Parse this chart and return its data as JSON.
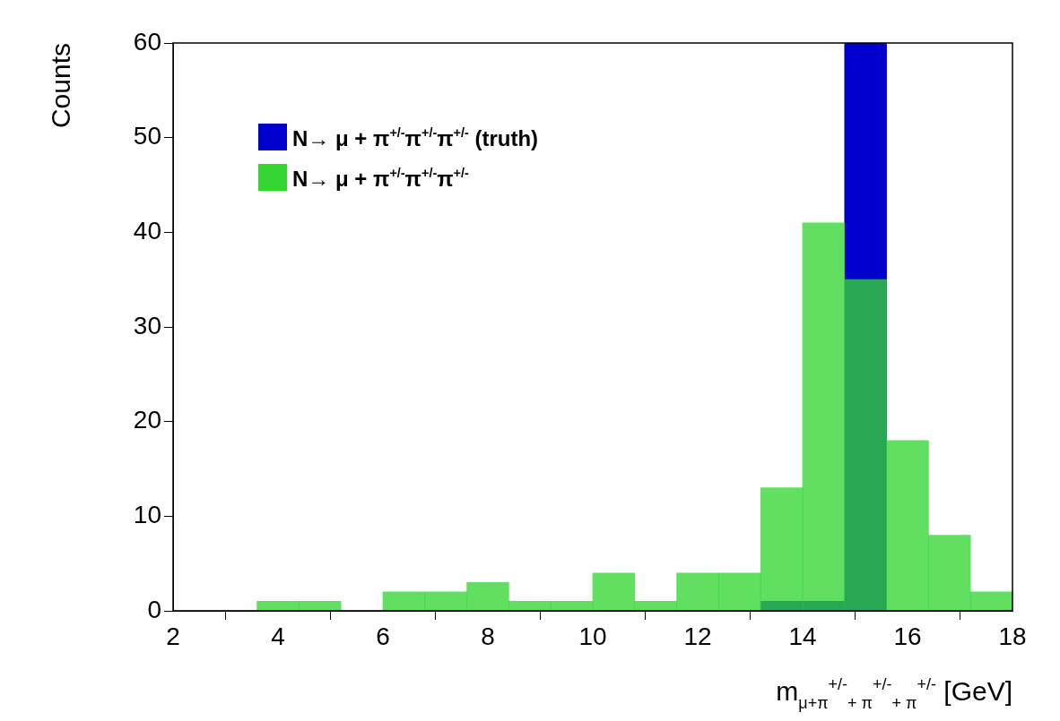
{
  "chart_data": {
    "type": "histogram",
    "ylabel": "Counts",
    "xlabel": "m$_{μ+π}$$^{+/-}$$_{+ π}$$^{+/-}$$_{+ π}$$^{+/-}$ [GeV]",
    "bins": [
      2,
      2.8,
      3.6,
      4.4,
      5.2,
      6,
      6.8,
      7.6,
      8.4,
      9.2,
      10,
      10.8,
      11.6,
      12.4,
      13.2,
      14,
      14.8,
      15.6,
      16.4,
      17.2,
      18
    ],
    "series": [
      {
        "name": "N→ μ + π$^{+/-}$π$^{+/-}$π$^{+/-}$ (truth)",
        "color": "#0000cc",
        "values": [
          0,
          0,
          0,
          0,
          0,
          0,
          0,
          0,
          0,
          0,
          0,
          0,
          0,
          0,
          1,
          1,
          60,
          0,
          0,
          0
        ]
      },
      {
        "name": "N→ μ + π$^{+/-}$π$^{+/-}$π$^{+/-}$",
        "color": "#33d633",
        "values": [
          0,
          0,
          1,
          1,
          0,
          2,
          2,
          3,
          1,
          1,
          4,
          1,
          4,
          4,
          13,
          41,
          35,
          18,
          8,
          2
        ]
      }
    ],
    "xlim": [
      2,
      18
    ],
    "xticks": [
      2,
      4,
      6,
      8,
      10,
      12,
      14,
      16,
      18
    ],
    "ylim": [
      0,
      60
    ],
    "yticks": [
      0,
      10,
      20,
      30,
      40,
      50,
      60
    ],
    "grid": false,
    "legend": "top left"
  }
}
